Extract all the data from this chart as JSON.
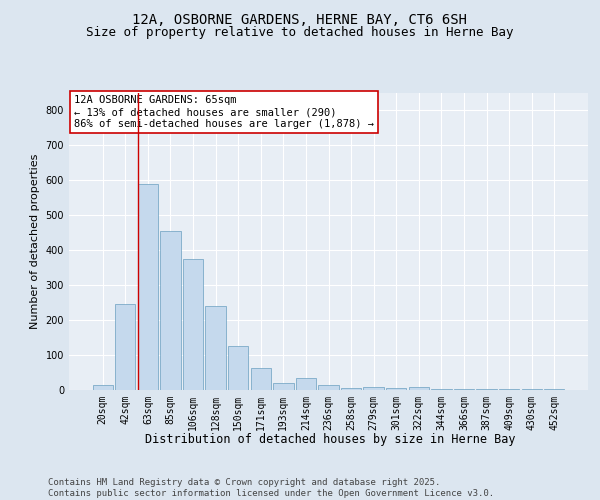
{
  "title": "12A, OSBORNE GARDENS, HERNE BAY, CT6 6SH",
  "subtitle": "Size of property relative to detached houses in Herne Bay",
  "xlabel": "Distribution of detached houses by size in Herne Bay",
  "ylabel": "Number of detached properties",
  "categories": [
    "20sqm",
    "42sqm",
    "63sqm",
    "85sqm",
    "106sqm",
    "128sqm",
    "150sqm",
    "171sqm",
    "193sqm",
    "214sqm",
    "236sqm",
    "258sqm",
    "279sqm",
    "301sqm",
    "322sqm",
    "344sqm",
    "366sqm",
    "387sqm",
    "409sqm",
    "430sqm",
    "452sqm"
  ],
  "values": [
    15,
    247,
    590,
    455,
    375,
    240,
    125,
    62,
    20,
    33,
    13,
    5,
    10,
    5,
    8,
    4,
    3,
    3,
    2,
    2,
    3
  ],
  "bar_color": "#c5d9ed",
  "bar_edge_color": "#6a9fc0",
  "vline_color": "#cc0000",
  "annotation_text": "12A OSBORNE GARDENS: 65sqm\n← 13% of detached houses are smaller (290)\n86% of semi-detached houses are larger (1,878) →",
  "annotation_box_color": "#ffffff",
  "annotation_box_edge": "#cc0000",
  "ylim": [
    0,
    850
  ],
  "yticks": [
    0,
    100,
    200,
    300,
    400,
    500,
    600,
    700,
    800
  ],
  "background_color": "#dce6f0",
  "plot_bg_color": "#e8eef5",
  "grid_color": "#ffffff",
  "footer_text": "Contains HM Land Registry data © Crown copyright and database right 2025.\nContains public sector information licensed under the Open Government Licence v3.0.",
  "title_fontsize": 10,
  "subtitle_fontsize": 9,
  "xlabel_fontsize": 8.5,
  "ylabel_fontsize": 8,
  "tick_fontsize": 7,
  "annotation_fontsize": 7.5,
  "footer_fontsize": 6.5
}
